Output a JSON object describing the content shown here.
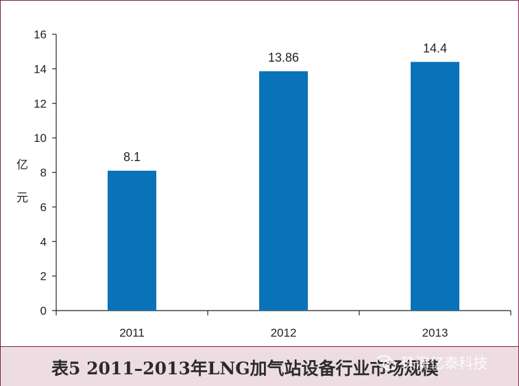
{
  "chart_data": {
    "type": "bar",
    "categories": [
      "2011",
      "2012",
      "2013"
    ],
    "values": [
      8.1,
      13.86,
      14.4
    ],
    "data_labels": [
      "8.1",
      "13.86",
      "14.4"
    ],
    "ylabel_chars": [
      "亿",
      "元"
    ],
    "ylim": [
      0,
      16
    ],
    "yticks": [
      0,
      2,
      4,
      6,
      8,
      10,
      12,
      14,
      16
    ],
    "grid": false,
    "bar_color": "#0a72b8"
  },
  "caption": {
    "title": "表5 2011–2013年LNG加气站设备行业市场规模",
    "watermark": "珠海亿泰科技",
    "watermark_icon": "wechat-icon"
  },
  "colors": {
    "frame": "#7b2248",
    "caption_bg": "#eddde3"
  }
}
